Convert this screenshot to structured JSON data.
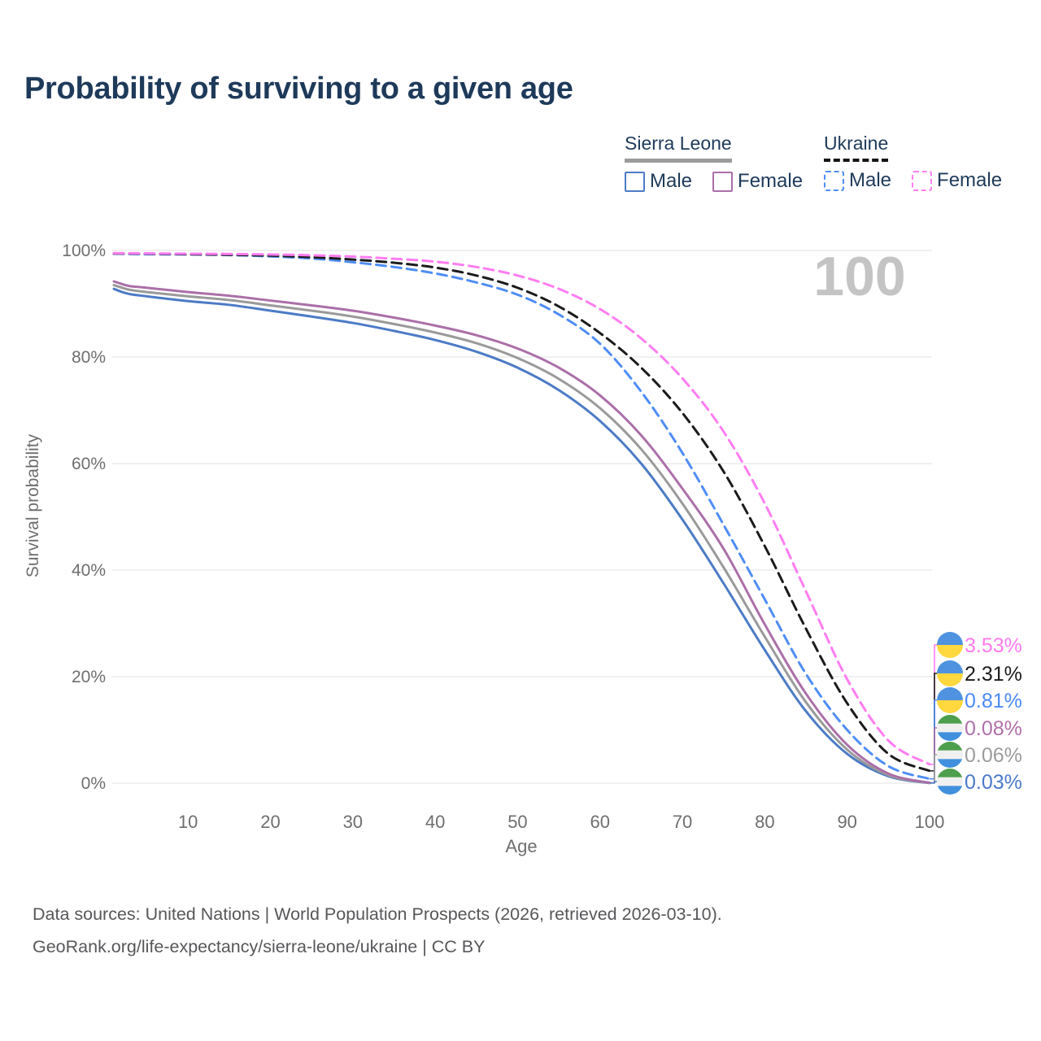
{
  "title": "Probability of surviving to a given age",
  "watermark": "100",
  "legend": {
    "groups": [
      {
        "name": "Sierra Leone",
        "line_style": "solid",
        "underline_color": "#9a9a9a",
        "items": [
          {
            "label": "Male",
            "color": "#4c7bc6"
          },
          {
            "label": "Female",
            "color": "#ab6fa8"
          }
        ]
      },
      {
        "name": "Ukraine",
        "line_style": "dashed",
        "underline_color": "#151515",
        "items": [
          {
            "label": "Male",
            "color": "#4f8df5"
          },
          {
            "label": "Female",
            "color": "#ff7df1"
          }
        ]
      }
    ]
  },
  "flags": {
    "ukraine": {
      "stripes": [
        "#4E92E0",
        "#FFD73F"
      ]
    },
    "sierra-leone": {
      "stripes": [
        "#4E9F4D",
        "#F0F0F0",
        "#4190DD"
      ]
    }
  },
  "chart_data": {
    "type": "line",
    "title": "Probability of surviving to a given age",
    "xlabel": "Age",
    "ylabel": "Survival probability",
    "xlim": [
      1,
      100
    ],
    "ylim": [
      0,
      100
    ],
    "grid": true,
    "legend_position": "top-right",
    "x_ticks": [
      10,
      20,
      30,
      40,
      50,
      60,
      70,
      80,
      90,
      100
    ],
    "y_ticks": [
      0,
      20,
      40,
      60,
      80,
      100
    ],
    "y_tick_labels": [
      "0%",
      "20%",
      "40%",
      "60%",
      "80%",
      "100%"
    ],
    "ages": [
      1,
      2,
      3,
      5,
      10,
      15,
      20,
      25,
      30,
      35,
      40,
      45,
      50,
      55,
      60,
      65,
      70,
      75,
      80,
      85,
      90,
      95,
      100
    ],
    "series": [
      {
        "name": "Sierra Leone Male",
        "country": "sierra-leone",
        "sex": "male",
        "color": "#4c7bc6",
        "dashed": false,
        "end_label": "0.03%",
        "end_label_color": "#4a7ac9",
        "values": [
          92.8,
          92.2,
          91.8,
          91.4,
          90.5,
          89.8,
          88.7,
          87.6,
          86.4,
          84.9,
          83.2,
          81.0,
          78.0,
          73.8,
          68.0,
          60.0,
          49.5,
          37.5,
          25.0,
          13.5,
          5.5,
          1.3,
          0.03
        ]
      },
      {
        "name": "Sierra Leone Both sexes",
        "country": "sierra-leone",
        "sex": "both",
        "color": "#9a9a9a",
        "dashed": false,
        "end_label": "0.06%",
        "end_label_color": "#9c9c9c",
        "values": [
          93.5,
          93.0,
          92.6,
          92.2,
          91.4,
          90.7,
          89.7,
          88.7,
          87.6,
          86.2,
          84.6,
          82.6,
          79.8,
          75.9,
          70.4,
          62.7,
          52.5,
          40.5,
          27.5,
          15.2,
          6.3,
          1.5,
          0.06
        ]
      },
      {
        "name": "Sierra Leone Female",
        "country": "sierra-leone",
        "sex": "female",
        "color": "#ab6fa8",
        "dashed": false,
        "end_label": "0.08%",
        "end_label_color": "#b06fa8",
        "values": [
          94.2,
          93.7,
          93.3,
          93.0,
          92.2,
          91.5,
          90.6,
          89.7,
          88.7,
          87.4,
          85.9,
          84.1,
          81.6,
          78.0,
          72.8,
          65.3,
          55.3,
          44.0,
          29.8,
          16.8,
          7.2,
          1.8,
          0.08
        ]
      },
      {
        "name": "Ukraine Male",
        "country": "ukraine",
        "sex": "male",
        "color": "#4f8df5",
        "dashed": true,
        "end_label": "0.81%",
        "end_label_color": "#4b8af5",
        "values": [
          99.4,
          99.38,
          99.36,
          99.32,
          99.25,
          99.15,
          98.9,
          98.5,
          97.8,
          96.9,
          95.7,
          94.0,
          91.7,
          88.0,
          82.5,
          73.5,
          62.0,
          48.5,
          34.5,
          20.5,
          10.0,
          3.2,
          0.81
        ]
      },
      {
        "name": "Ukraine Both sexes",
        "country": "ukraine",
        "sex": "both",
        "color": "#1b1b1b",
        "dashed": true,
        "end_label": "2.31%",
        "end_label_color": "#1b1b1b",
        "values": [
          99.45,
          99.43,
          99.42,
          99.4,
          99.3,
          99.2,
          99.05,
          98.75,
          98.3,
          97.7,
          96.8,
          95.3,
          93.0,
          89.5,
          84.5,
          78.0,
          69.5,
          58.5,
          44.5,
          29.0,
          15.0,
          5.5,
          2.31
        ]
      },
      {
        "name": "Ukraine Female",
        "country": "ukraine",
        "sex": "female",
        "color": "#ff7df1",
        "dashed": true,
        "end_label": "3.53%",
        "end_label_color": "#ff7bf0",
        "values": [
          99.5,
          99.49,
          99.48,
          99.46,
          99.4,
          99.35,
          99.25,
          99.1,
          98.85,
          98.45,
          97.9,
          96.9,
          95.3,
          92.8,
          89.0,
          83.5,
          76.0,
          66.0,
          52.5,
          36.0,
          19.5,
          8.0,
          3.53
        ]
      }
    ]
  },
  "source": {
    "line1": "Data sources: United Nations | World Population Prospects (2026, retrieved 2026-03-10).",
    "line2": "GeoRank.org/life-expectancy/sierra-leone/ukraine | CC BY"
  }
}
